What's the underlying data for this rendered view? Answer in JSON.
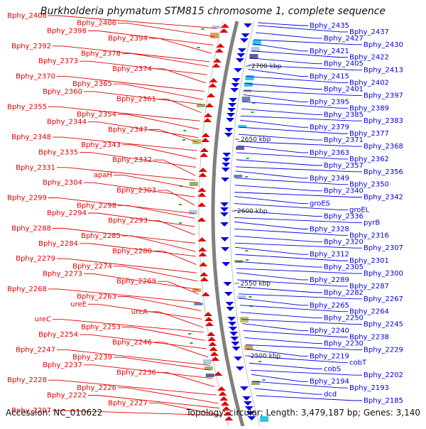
{
  "title": "Burkholderia phymatum STM815 chromosome 1, complete sequence",
  "accession": "Accession: NC_010622",
  "summary": "Topology: circular; Length: 3,479,187 bp; Genes: 3,140",
  "colors": {
    "left_strand": "#e00000",
    "right_strand": "#0000e0",
    "backbone": "#808080",
    "gc_green": "#22aa22",
    "cyan_feature": "#30c8e0"
  },
  "scale_ticks": [
    {
      "label": "2700 kbp"
    },
    {
      "label": "2650 kbp"
    },
    {
      "label": "2600 kbp"
    },
    {
      "label": "2550 kbp"
    },
    {
      "label": "2500 kbp"
    }
  ],
  "left_labels": [
    "Bphy_2408",
    "Bphy_2406",
    "Bphy_2398",
    "Bphy_2394",
    "Bphy_2392",
    "Bphy_2378",
    "Bphy_2373",
    "Bphy_2374",
    "Bphy_2370",
    "Bphy_2365",
    "Bphy_2360",
    "Bphy_2361",
    "Bphy_2355",
    "Bphy_2354",
    "Bphy_2344",
    "Bphy_2347",
    "Bphy_2348",
    "Bphy_2343",
    "Bphy_2335",
    "Bphy_2332",
    "Bphy_2331",
    "apaH",
    "Bphy_2304",
    "Bphy_2303",
    "Bphy_2299",
    "Bphy_2298",
    "Bphy_2294",
    "Bphy_2293",
    "Bphy_2288",
    "Bphy_2285",
    "Bphy_2284",
    "Bphy_2280",
    "Bphy_2279",
    "Bphy_2274",
    "Bphy_2273",
    "Bphy_2269",
    "Bphy_2268",
    "Bphy_2263",
    "ureE",
    "ureA",
    "ureC",
    "Bphy_2253",
    "Bphy_2254",
    "Bphy_2246",
    "Bphy_2247",
    "Bphy_2239",
    "Bphy_2237",
    "Bphy_2236",
    "Bphy_2228",
    "Bphy_2226",
    "Bphy_2222",
    "Bphy_2227",
    "Bphy_2207"
  ],
  "right_labels": [
    "Bphy_2435",
    "Bphy_2437",
    "Bphy_2427",
    "Bphy_2430",
    "Bphy_2421",
    "Bphy_2422",
    "Bphy_2405",
    "Bphy_2413",
    "Bphy_2415",
    "Bphy_2402",
    "Bphy_2401",
    "Bphy_2397",
    "Bphy_2395",
    "Bphy_2389",
    "Bphy_2385",
    "Bphy_2383",
    "Bphy_2379",
    "Bphy_2377",
    "Bphy_2371",
    "Bphy_2368",
    "Bphy_2363",
    "Bphy_2362",
    "Bphy_2357",
    "Bphy_2356",
    "Bphy_2349",
    "Bphy_2350",
    "Bphy_2340",
    "Bphy_2342",
    "groES",
    "groEL",
    "Bphy_2336",
    "pyrB",
    "Bphy_2328",
    "Bphy_2316",
    "Bphy_2320",
    "Bphy_2307",
    "Bphy_2312",
    "Bphy_2301",
    "Bphy_2305",
    "Bphy_2300",
    "Bphy_2289",
    "Bphy_2287",
    "Bphy_2282",
    "Bphy_2267",
    "Bphy_2265",
    "Bphy_2264",
    "Bphy_2250",
    "Bphy_2245",
    "Bphy_2240",
    "Bphy_2238",
    "Bphy_2230",
    "Bphy_2229",
    "Bphy_2219",
    "cobT",
    "cobS",
    "Bphy_2202",
    "Bphy_2194",
    "Bphy_2193",
    "dcd",
    "Bphy_2185"
  ]
}
